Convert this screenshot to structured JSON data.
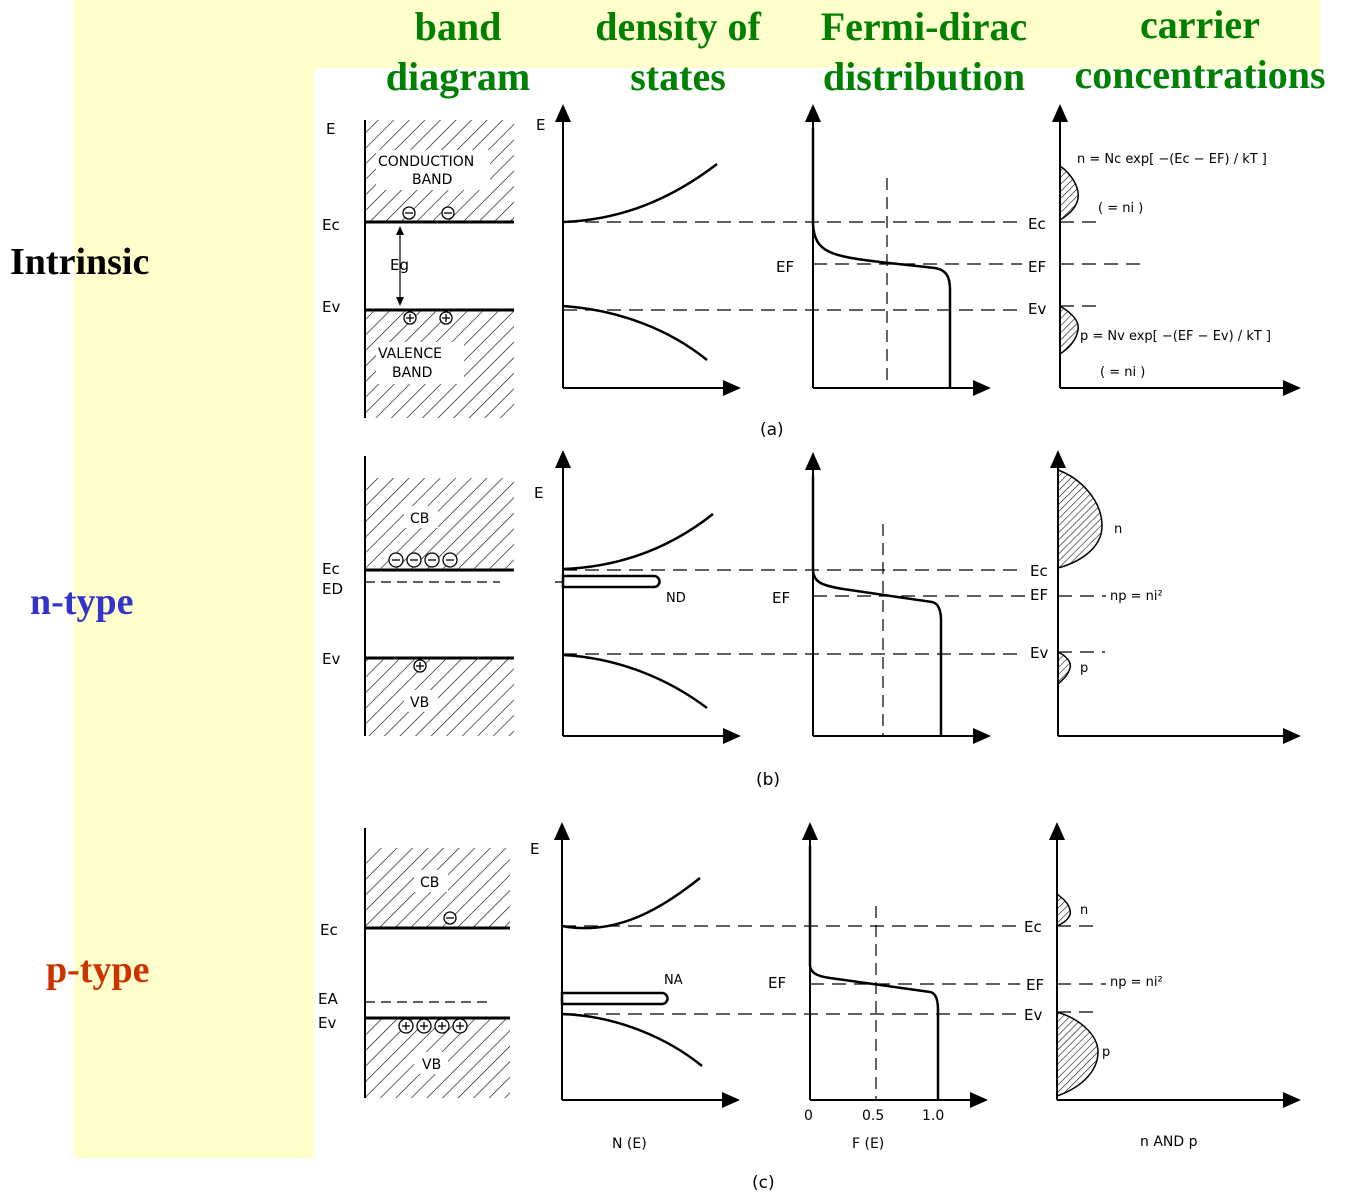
{
  "columns": [
    {
      "line1": "band",
      "line2": "diagram"
    },
    {
      "line1": "density of",
      "line2": "states"
    },
    {
      "line1": "Fermi-dirac",
      "line2": "distribution"
    },
    {
      "line1": "carrier",
      "line2": "concentrations"
    }
  ],
  "rows": [
    {
      "label": "Intrinsic",
      "color": "#000000",
      "sublabel": "(a)"
    },
    {
      "label": "n-type",
      "color": "#3333cc",
      "sublabel": "(b)"
    },
    {
      "label": "p-type",
      "color": "#cc3300",
      "sublabel": "(c)"
    }
  ],
  "panel_a": {
    "e_axis": "E",
    "ec": "Ec",
    "ev": "Ev",
    "ef": "EF",
    "eg": "Eg",
    "conduction_band": [
      "CONDUCTION",
      "BAND"
    ],
    "valence_band": [
      "VALENCE",
      "BAND"
    ],
    "n_eq": "n = Nc exp[ −(Ec − EF) / kT ]",
    "n_ni": "( = ni )",
    "p_eq": "p = Nv exp[ −(EF − Ev) / kT ]",
    "p_ni": "( = ni )"
  },
  "panel_b": {
    "cb": "CB",
    "vb": "VB",
    "ec": "Ec",
    "ed": "ED",
    "ev": "Ev",
    "ef": "EF",
    "nd": "ND",
    "n": "n",
    "p": "p",
    "np": "np = ni²",
    "e_axis": "E"
  },
  "panel_c": {
    "cb": "CB",
    "vb": "VB",
    "ec": "Ec",
    "ea": "EA",
    "ev": "Ev",
    "ef": "EF",
    "na": "NA",
    "n": "n",
    "p": "p",
    "np": "np = ni²",
    "e_axis": "E"
  },
  "axes": {
    "dos_label": "N (E)",
    "fd_label": "F (E)",
    "cc_label": "n AND p",
    "fd_ticks": [
      "0",
      "0.5",
      "1.0"
    ]
  },
  "colors": {
    "heading": "#008000",
    "highlight": "#ffffcc",
    "ink": "#000000"
  }
}
